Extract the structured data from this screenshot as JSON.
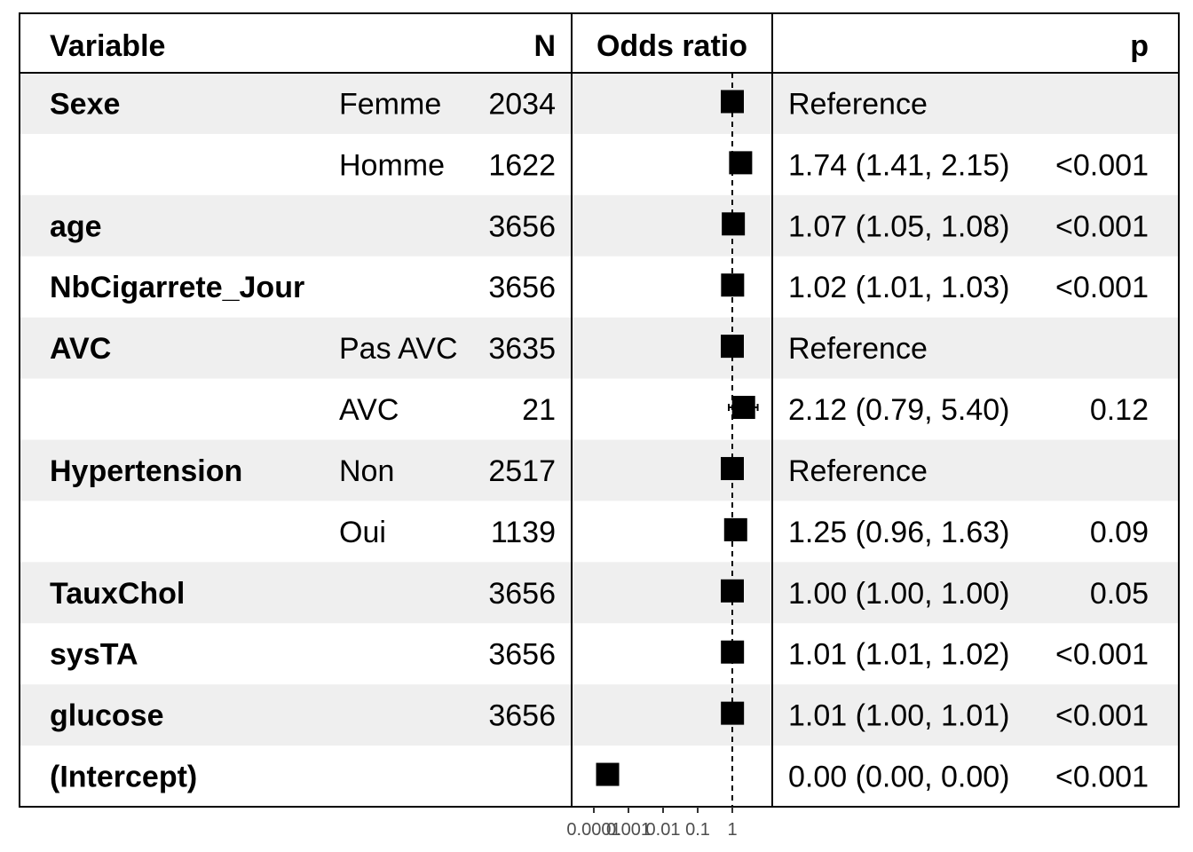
{
  "chart_data": {
    "type": "forest",
    "title": "",
    "headers": {
      "variable": "Variable",
      "n": "N",
      "plot": "Odds ratio",
      "p": "p"
    },
    "x_axis": {
      "scale": "log",
      "tick_values": [
        0.0001,
        0.001,
        0.01,
        0.1,
        1
      ],
      "tick_labels": [
        "0.0001",
        "0.001",
        "0.01",
        "0.1",
        "1"
      ],
      "xlim": [
        0.0001,
        1.6
      ],
      "reference_line": 1
    },
    "rows": [
      {
        "variable": "Sexe",
        "level": "Femme",
        "n": "2034",
        "estimate_text": "Reference",
        "p": "",
        "or": 1,
        "lo": 1,
        "hi": 1
      },
      {
        "variable": "",
        "level": "Homme",
        "n": "1622",
        "estimate_text": "1.74 (1.41, 2.15)",
        "p": "<0.001",
        "or": 1.74,
        "lo": 1.41,
        "hi": 2.15
      },
      {
        "variable": "age",
        "level": "",
        "n": "3656",
        "estimate_text": "1.07 (1.05, 1.08)",
        "p": "<0.001",
        "or": 1.07,
        "lo": 1.05,
        "hi": 1.08
      },
      {
        "variable": "NbCigarrete_Jour",
        "level": "",
        "n": "3656",
        "estimate_text": "1.02 (1.01, 1.03)",
        "p": "<0.001",
        "or": 1.02,
        "lo": 1.01,
        "hi": 1.03
      },
      {
        "variable": "AVC",
        "level": "Pas AVC",
        "n": "3635",
        "estimate_text": "Reference",
        "p": "",
        "or": 1,
        "lo": 1,
        "hi": 1
      },
      {
        "variable": "",
        "level": "AVC",
        "n": "21",
        "estimate_text": "2.12 (0.79, 5.40)",
        "p": "0.12",
        "or": 2.12,
        "lo": 0.79,
        "hi": 5.4
      },
      {
        "variable": "Hypertension",
        "level": "Non",
        "n": "2517",
        "estimate_text": "Reference",
        "p": "",
        "or": 1,
        "lo": 1,
        "hi": 1
      },
      {
        "variable": "",
        "level": "Oui",
        "n": "1139",
        "estimate_text": "1.25 (0.96, 1.63)",
        "p": "0.09",
        "or": 1.25,
        "lo": 0.96,
        "hi": 1.63
      },
      {
        "variable": "TauxChol",
        "level": "",
        "n": "3656",
        "estimate_text": "1.00 (1.00, 1.00)",
        "p": "0.05",
        "or": 1.0,
        "lo": 1.0,
        "hi": 1.0
      },
      {
        "variable": "sysTA",
        "level": "",
        "n": "3656",
        "estimate_text": "1.01 (1.01, 1.02)",
        "p": "<0.001",
        "or": 1.01,
        "lo": 1.01,
        "hi": 1.02
      },
      {
        "variable": "glucose",
        "level": "",
        "n": "3656",
        "estimate_text": "1.01 (1.00, 1.01)",
        "p": "<0.001",
        "or": 1.01,
        "lo": 1.0,
        "hi": 1.01
      },
      {
        "variable": "(Intercept)",
        "level": "",
        "n": "",
        "estimate_text": "0.00 (0.00, 0.00)",
        "p": "<0.001",
        "or": 0.00025,
        "lo": 0.00015,
        "hi": 0.00045
      }
    ],
    "colors": {
      "stripe": "#efefef",
      "marker": "#000000",
      "border": "#000000",
      "tick_text": "#4d4d4d"
    }
  }
}
